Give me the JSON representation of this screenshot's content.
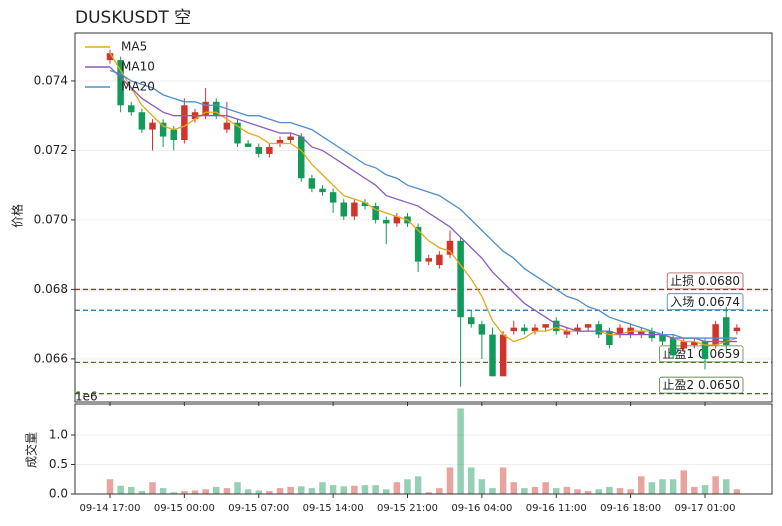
{
  "chart_data": {
    "type": "candlestick",
    "title": "DUSKUSDT  空",
    "ylabel": "价格",
    "categories": [
      "09-14 17:00",
      null,
      null,
      null,
      null,
      null,
      null,
      "09-15 00:00",
      null,
      null,
      null,
      null,
      null,
      null,
      "09-15 07:00",
      null,
      null,
      null,
      null,
      null,
      null,
      "09-15 14:00",
      null,
      null,
      null,
      null,
      null,
      null,
      "09-15 21:00",
      null,
      null,
      null,
      null,
      null,
      null,
      "09-16 04:00",
      null,
      null,
      null,
      null,
      null,
      null,
      "09-16 11:00",
      null,
      null,
      null,
      null,
      null,
      null,
      "09-16 18:00",
      null,
      null,
      null,
      null,
      null,
      null,
      "09-17 01:00",
      null,
      null,
      null
    ],
    "open": [
      0.0746,
      0.0746,
      0.0733,
      0.0731,
      0.0726,
      0.0728,
      0.0726,
      0.0723,
      0.0729,
      0.073,
      0.0734,
      0.0726,
      0.0728,
      0.0722,
      0.0721,
      0.0719,
      0.0722,
      0.0723,
      0.0724,
      0.0712,
      0.0709,
      0.0708,
      0.0705,
      0.0701,
      0.0705,
      0.0704,
      0.07,
      0.0699,
      0.0701,
      0.0698,
      0.0688,
      0.0687,
      0.069,
      0.0694,
      0.0672,
      0.067,
      0.0667,
      0.0655,
      0.0668,
      0.0669,
      0.0668,
      0.0669,
      0.0671,
      0.0667,
      0.0668,
      0.0669,
      0.067,
      0.0668,
      0.0667,
      0.0667,
      0.0667,
      0.0668,
      0.0667,
      0.0666,
      0.0663,
      0.0664,
      0.0665,
      0.0664,
      0.0672,
      0.0668
    ],
    "high": [
      0.0749,
      0.0747,
      0.0734,
      0.0732,
      0.0729,
      0.0729,
      0.0727,
      0.0735,
      0.0732,
      0.0738,
      0.0735,
      0.0734,
      0.0729,
      0.0723,
      0.0722,
      0.0722,
      0.0724,
      0.0725,
      0.0725,
      0.0713,
      0.071,
      0.0709,
      0.0706,
      0.0706,
      0.0706,
      0.0705,
      0.0701,
      0.0702,
      0.0702,
      0.0699,
      0.069,
      0.0691,
      0.0697,
      0.0695,
      0.0674,
      0.0671,
      0.0669,
      0.0668,
      0.0671,
      0.067,
      0.067,
      0.067,
      0.0672,
      0.0669,
      0.067,
      0.067,
      0.0671,
      0.0669,
      0.067,
      0.067,
      0.0669,
      0.0669,
      0.0668,
      0.0667,
      0.0666,
      0.0666,
      0.0666,
      0.0671,
      0.0675,
      0.067
    ],
    "low": [
      0.0745,
      0.0731,
      0.073,
      0.0725,
      0.072,
      0.0721,
      0.072,
      0.0722,
      0.0728,
      0.0729,
      0.0729,
      0.0725,
      0.0721,
      0.0721,
      0.0718,
      0.0718,
      0.0721,
      0.0722,
      0.0711,
      0.0708,
      0.0707,
      0.0702,
      0.07,
      0.07,
      0.0703,
      0.0699,
      0.0693,
      0.0698,
      0.0698,
      0.0685,
      0.0687,
      0.0686,
      0.0689,
      0.0652,
      0.0669,
      0.066,
      0.0655,
      0.0655,
      0.0667,
      0.0667,
      0.0667,
      0.0668,
      0.0667,
      0.0666,
      0.0667,
      0.0668,
      0.0666,
      0.0663,
      0.0666,
      0.0666,
      0.0666,
      0.0665,
      0.0664,
      0.066,
      0.0662,
      0.0663,
      0.0657,
      0.0663,
      0.0662,
      0.0667
    ],
    "close": [
      0.0748,
      0.0733,
      0.0731,
      0.0726,
      0.0728,
      0.0724,
      0.0723,
      0.0733,
      0.0731,
      0.0734,
      0.073,
      0.0728,
      0.0722,
      0.0721,
      0.0719,
      0.0721,
      0.0723,
      0.0724,
      0.0712,
      0.0709,
      0.0708,
      0.0705,
      0.0701,
      0.0705,
      0.0704,
      0.07,
      0.0699,
      0.0701,
      0.0699,
      0.0688,
      0.0689,
      0.069,
      0.0694,
      0.0672,
      0.067,
      0.0667,
      0.0655,
      0.0667,
      0.0669,
      0.0668,
      0.0669,
      0.067,
      0.0668,
      0.0668,
      0.0669,
      0.067,
      0.0667,
      0.0664,
      0.0669,
      0.0669,
      0.0668,
      0.0666,
      0.0665,
      0.0661,
      0.0665,
      0.0665,
      0.066,
      0.067,
      0.0664,
      0.0669
    ],
    "up_color": "#d0352b",
    "down_color": "#119a58",
    "series": [
      {
        "name": "MA5",
        "color": "#e6a817",
        "values": [
          0.0748,
          0.0743,
          0.0738,
          0.0733,
          0.073,
          0.0727,
          0.0726,
          0.0727,
          0.0729,
          0.0731,
          0.0731,
          0.0729,
          0.0727,
          0.0725,
          0.0724,
          0.0722,
          0.0722,
          0.0722,
          0.072,
          0.0716,
          0.0713,
          0.071,
          0.0707,
          0.0706,
          0.0705,
          0.0703,
          0.0702,
          0.0701,
          0.07,
          0.0697,
          0.0694,
          0.0692,
          0.0691,
          0.0687,
          0.0683,
          0.0678,
          0.0671,
          0.0667,
          0.0665,
          0.0666,
          0.0668,
          0.0668,
          0.0669,
          0.0668,
          0.0668,
          0.0668,
          0.0668,
          0.0667,
          0.0667,
          0.0668,
          0.0668,
          0.0668,
          0.0667,
          0.0666,
          0.0665,
          0.0665,
          0.0664,
          0.0664,
          0.0665,
          0.0666
        ]
      },
      {
        "name": "MA10",
        "color": "#8a5cc2",
        "values": [
          0.0744,
          0.0741,
          0.0738,
          0.0735,
          0.0733,
          0.0731,
          0.073,
          0.073,
          0.073,
          0.073,
          0.073,
          0.073,
          0.0729,
          0.0728,
          0.0727,
          0.0726,
          0.0725,
          0.0725,
          0.0724,
          0.0721,
          0.072,
          0.0718,
          0.0716,
          0.0714,
          0.0712,
          0.071,
          0.0707,
          0.0706,
          0.0705,
          0.0704,
          0.0702,
          0.07,
          0.0698,
          0.0695,
          0.0692,
          0.0689,
          0.0685,
          0.0682,
          0.0679,
          0.0676,
          0.0674,
          0.0672,
          0.067,
          0.0669,
          0.0668,
          0.0668,
          0.0668,
          0.0668,
          0.0667,
          0.0667,
          0.0667,
          0.0667,
          0.0667,
          0.0666,
          0.0666,
          0.0666,
          0.0665,
          0.0665,
          0.0665,
          0.0665
        ]
      },
      {
        "name": "MA20",
        "color": "#4a90d0",
        "values": [
          0.0743,
          0.0742,
          0.074,
          0.0739,
          0.0738,
          0.0736,
          0.0735,
          0.0734,
          0.0734,
          0.0733,
          0.0733,
          0.0732,
          0.0731,
          0.073,
          0.073,
          0.0729,
          0.0728,
          0.0728,
          0.0727,
          0.0726,
          0.0724,
          0.0722,
          0.072,
          0.0718,
          0.0716,
          0.0715,
          0.0713,
          0.0712,
          0.071,
          0.0709,
          0.0708,
          0.0707,
          0.0705,
          0.0703,
          0.07,
          0.0697,
          0.0694,
          0.0691,
          0.0689,
          0.0686,
          0.0684,
          0.0682,
          0.068,
          0.0678,
          0.0677,
          0.0675,
          0.0674,
          0.0672,
          0.0671,
          0.067,
          0.0669,
          0.0668,
          0.0667,
          0.0667,
          0.0666,
          0.0666,
          0.0666,
          0.0666,
          0.0666,
          0.0666
        ]
      }
    ],
    "levels": [
      {
        "label": "止损 0.0680",
        "value": 0.068,
        "color": "#a03030"
      },
      {
        "label": "入场 0.0674",
        "value": 0.0674,
        "color": "#2a6aa8"
      },
      {
        "label": "止盈1 0.0659",
        "value": 0.0659,
        "color": "#4a7a2a"
      },
      {
        "label": "止盈2 0.0650",
        "value": 0.065,
        "color": "#3a6a1a"
      }
    ],
    "ylim": [
      0.06476,
      0.07538
    ],
    "yticks": [
      0.066,
      0.068,
      {
        "value": 0.07,
        "label": "0.070"
      },
      0.072,
      0.074
    ],
    "legend": "upper left",
    "grid": true,
    "volume": {
      "ylabel": "成交量",
      "offset_label": "1e6",
      "ylim": [
        0,
        1.525
      ],
      "yticks": [
        {
          "value": 0,
          "label": "0.0"
        },
        0.5,
        {
          "value": 1,
          "label": "1.0"
        }
      ],
      "values": [
        0.25,
        0.14,
        0.12,
        0.05,
        0.2,
        0.1,
        0.03,
        0.05,
        0.06,
        0.08,
        0.12,
        0.1,
        0.2,
        0.08,
        0.06,
        0.05,
        0.1,
        0.12,
        0.13,
        0.1,
        0.2,
        0.15,
        0.13,
        0.14,
        0.15,
        0.15,
        0.08,
        0.2,
        0.25,
        0.3,
        0.03,
        0.1,
        0.45,
        1.45,
        0.45,
        0.25,
        0.1,
        0.45,
        0.2,
        0.1,
        0.12,
        0.2,
        0.1,
        0.12,
        0.08,
        0.05,
        0.08,
        0.12,
        0.1,
        0.08,
        0.3,
        0.2,
        0.25,
        0.25,
        0.4,
        0.12,
        0.15,
        0.3,
        0.25,
        0.08
      ]
    }
  }
}
